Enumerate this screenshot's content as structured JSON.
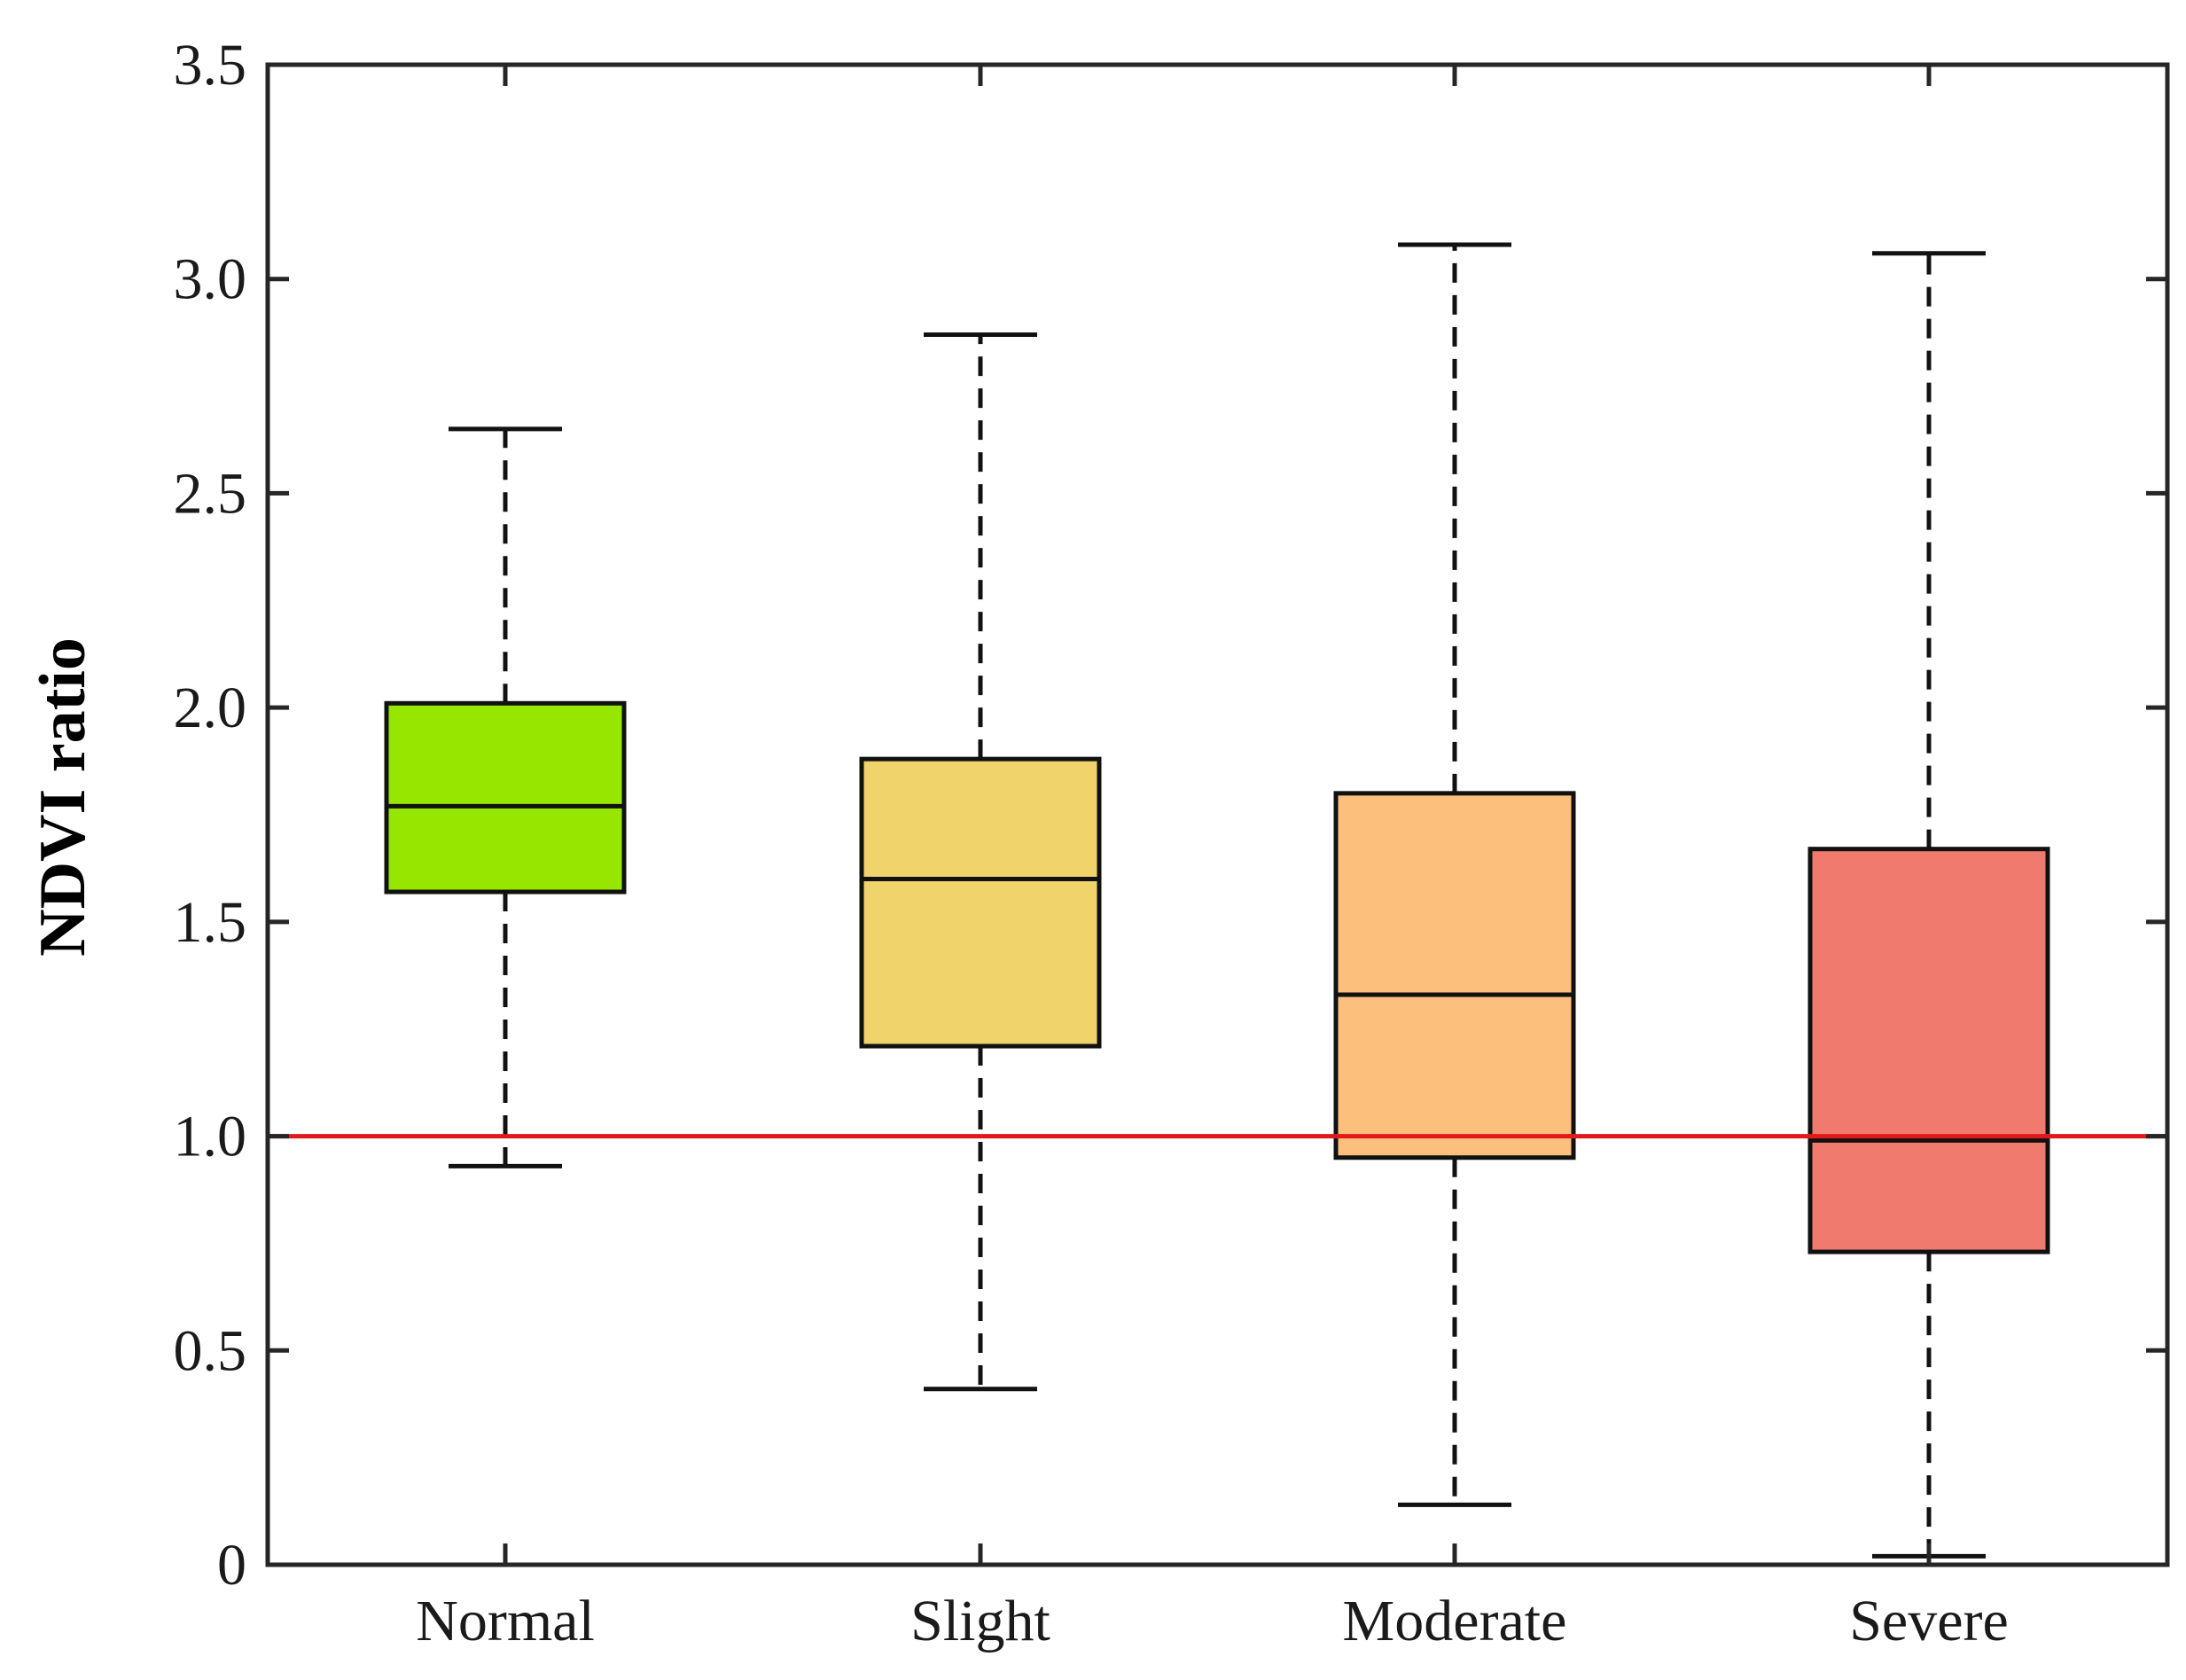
{
  "chart_data": {
    "type": "box",
    "title": "",
    "xlabel": "",
    "ylabel": "NDVI ratio",
    "ylim": [
      0,
      3.5
    ],
    "yticks": [
      0,
      0.5,
      1.0,
      1.5,
      2.0,
      2.5,
      3.0,
      3.5
    ],
    "ytick_labels": [
      "0",
      "0.5",
      "1.0",
      "1.5",
      "2.0",
      "2.5",
      "3.0",
      "3.5"
    ],
    "categories": [
      "Normal",
      "Slight",
      "Moderate",
      "Severe"
    ],
    "boxes": [
      {
        "name": "Normal",
        "whisker_low": 0.93,
        "q1": 1.57,
        "median": 1.77,
        "q3": 2.01,
        "whisker_high": 2.65,
        "color": "#96e600"
      },
      {
        "name": "Slight",
        "whisker_low": 0.41,
        "q1": 1.21,
        "median": 1.6,
        "q3": 1.88,
        "whisker_high": 2.87,
        "color": "#f1d36c"
      },
      {
        "name": "Moderate",
        "whisker_low": 0.14,
        "q1": 0.95,
        "median": 1.33,
        "q3": 1.8,
        "whisker_high": 3.08,
        "color": "#fdbf7c"
      },
      {
        "name": "Severe",
        "whisker_low": 0.02,
        "q1": 0.73,
        "median": 0.99,
        "q3": 1.67,
        "whisker_high": 3.06,
        "color": "#ef7a6d"
      }
    ],
    "reference_line": {
      "y": 1.0,
      "color": "#e01a1a"
    },
    "grid": false,
    "legend": "none"
  }
}
